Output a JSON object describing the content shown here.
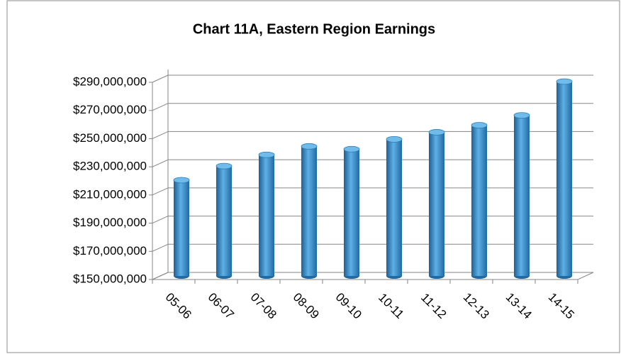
{
  "chart_data": {
    "type": "bar",
    "title": "Chart 11A, Eastern Region Earnings",
    "categories": [
      "05-06",
      "06-07",
      "07-08",
      "08-09",
      "09-10",
      "10-11",
      "11-12",
      "12-13",
      "13-14",
      "14-15"
    ],
    "values": [
      218000000,
      228000000,
      236000000,
      242000000,
      240000000,
      247000000,
      252000000,
      257000000,
      264000000,
      288000000
    ],
    "color": "#3b8ecb",
    "ylim": [
      150000000,
      290000000
    ],
    "yticks": [
      {
        "value": 150000000,
        "label": "$150,000,000"
      },
      {
        "value": 170000000,
        "label": "$170,000,000"
      },
      {
        "value": 190000000,
        "label": "$190,000,000"
      },
      {
        "value": 210000000,
        "label": "$210,000,000"
      },
      {
        "value": 230000000,
        "label": "$230,000,000"
      },
      {
        "value": 250000000,
        "label": "$250,000,000"
      },
      {
        "value": 270000000,
        "label": "$270,000,000"
      },
      {
        "value": 290000000,
        "label": "$290,000,000"
      }
    ],
    "grid": true
  }
}
